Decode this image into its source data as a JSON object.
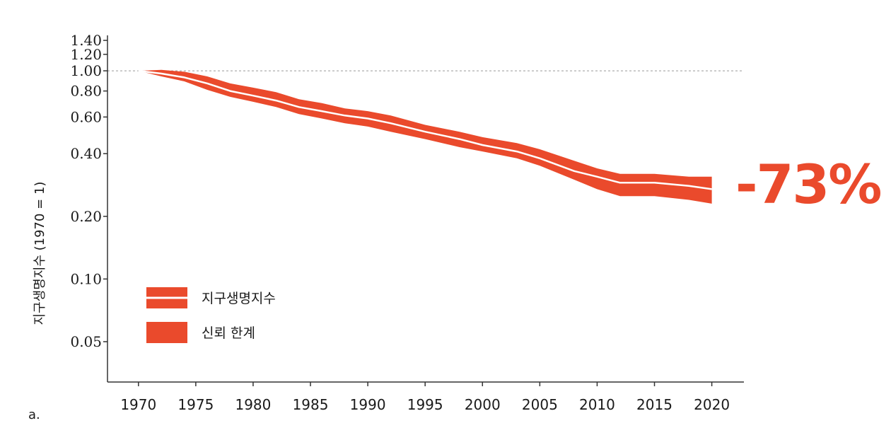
{
  "panel_label": "a.",
  "colors": {
    "band": "#ea4a2c",
    "line": "#ffffff",
    "axis": "#333333",
    "reference": "#999999"
  },
  "chart_data": {
    "type": "area",
    "ylabel": "지구생명지수 (1970 = 1)",
    "xlabel": "",
    "y_scale": "log",
    "ylim": [
      0.032,
      1.48
    ],
    "xlim": [
      1967.3,
      2022.8
    ],
    "x_ticks": [
      1970,
      1975,
      1980,
      1985,
      1990,
      1995,
      2000,
      2005,
      2010,
      2015,
      2020
    ],
    "y_ticks": [
      {
        "value": 0.05,
        "label": "0.05"
      },
      {
        "value": 0.1,
        "label": "0.10"
      },
      {
        "value": 0.2,
        "label": "0.20"
      },
      {
        "value": 0.4,
        "label": "0.40"
      },
      {
        "value": 0.6,
        "label": "0.60"
      },
      {
        "value": 0.8,
        "label": "0.80"
      },
      {
        "value": 1.0,
        "label": "1.00"
      },
      {
        "value": 1.2,
        "label": "1.20"
      },
      {
        "value": 1.4,
        "label": "1.40"
      }
    ],
    "reference_line": 1.0,
    "x": [
      1970,
      1972,
      1974,
      1976,
      1978,
      1980,
      1982,
      1984,
      1986,
      1988,
      1990,
      1992,
      1995,
      1998,
      2000,
      2003,
      2005,
      2008,
      2010,
      2012,
      2015,
      2018,
      2020
    ],
    "index": [
      1.0,
      0.97,
      0.93,
      0.87,
      0.8,
      0.76,
      0.72,
      0.67,
      0.64,
      0.61,
      0.59,
      0.56,
      0.51,
      0.47,
      0.44,
      0.41,
      0.38,
      0.33,
      0.31,
      0.29,
      0.29,
      0.28,
      0.27
    ],
    "upper": [
      1.0,
      1.01,
      0.99,
      0.94,
      0.87,
      0.83,
      0.79,
      0.73,
      0.7,
      0.66,
      0.64,
      0.61,
      0.55,
      0.51,
      0.48,
      0.45,
      0.42,
      0.37,
      0.34,
      0.32,
      0.32,
      0.31,
      0.31
    ],
    "lower": [
      1.0,
      0.94,
      0.89,
      0.81,
      0.75,
      0.71,
      0.67,
      0.62,
      0.59,
      0.56,
      0.54,
      0.51,
      0.47,
      0.43,
      0.41,
      0.38,
      0.35,
      0.3,
      0.27,
      0.25,
      0.25,
      0.24,
      0.23
    ],
    "legend": [
      {
        "key": "index",
        "label": "지구생명지수"
      },
      {
        "key": "confidence",
        "label": "신뢰 한계"
      }
    ],
    "legend_position": "lower-left",
    "annotation": "-73%"
  }
}
